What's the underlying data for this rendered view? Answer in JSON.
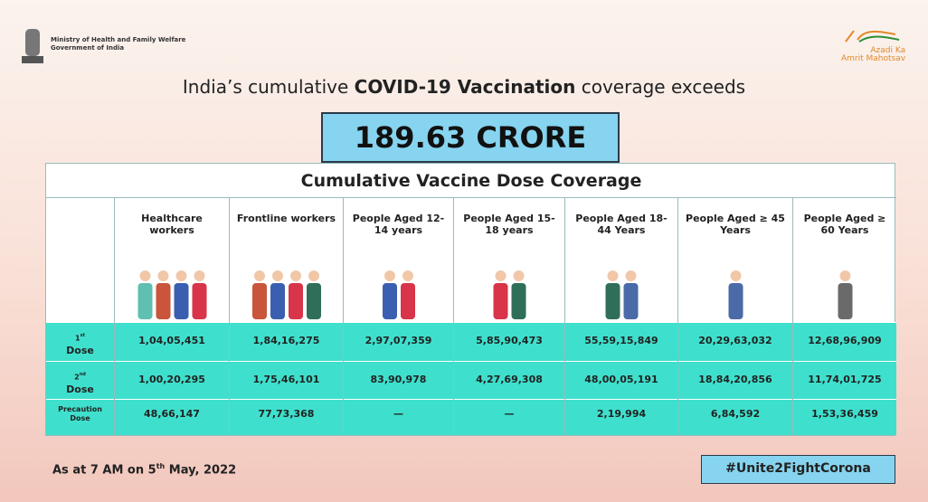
{
  "header": {
    "ministry": [
      "Ministry of Health and Family Welfare",
      "Government of India"
    ],
    "logo_text": [
      "Azadi",
      "Ka",
      "Amrit",
      "Mahotsav"
    ]
  },
  "title": {
    "prefix": "India’s cumulative",
    "bold": "COVID-19 Vaccination",
    "suffix": "coverage exceeds"
  },
  "headline": "189.63 CRORE",
  "table": {
    "title": "Cumulative Vaccine Dose Coverage",
    "columns": [
      "Healthcare workers",
      "Frontline workers",
      "People Aged 12-14 years",
      "People Aged 15-18 years",
      "People Aged 18-44 Years",
      "People Aged ≥ 45 Years",
      "People Aged ≥ 60 Years"
    ],
    "rows": [
      {
        "num": "1",
        "sup": "st",
        "text": "Dose",
        "cells": [
          "1,04,05,451",
          "1,84,16,275",
          "2,97,07,359",
          "5,85,90,473",
          "55,59,15,849",
          "20,29,63,032",
          "12,68,96,909"
        ]
      },
      {
        "num": "2",
        "sup": "nd",
        "text": "Dose",
        "cells": [
          "1,00,20,295",
          "1,75,46,101",
          "83,90,978",
          "4,27,69,308",
          "48,00,05,191",
          "18,84,20,856",
          "11,74,01,725"
        ]
      },
      {
        "text": "Precaution Dose",
        "cells": [
          "48,66,147",
          "77,73,368",
          "—",
          "—",
          "2,19,994",
          "6,84,592",
          "1,53,36,459"
        ]
      }
    ]
  },
  "footer": {
    "date": [
      "As at 7 AM on 5",
      "th",
      "May, 2022"
    ],
    "hashtag": "#Unite2FightCorona"
  }
}
